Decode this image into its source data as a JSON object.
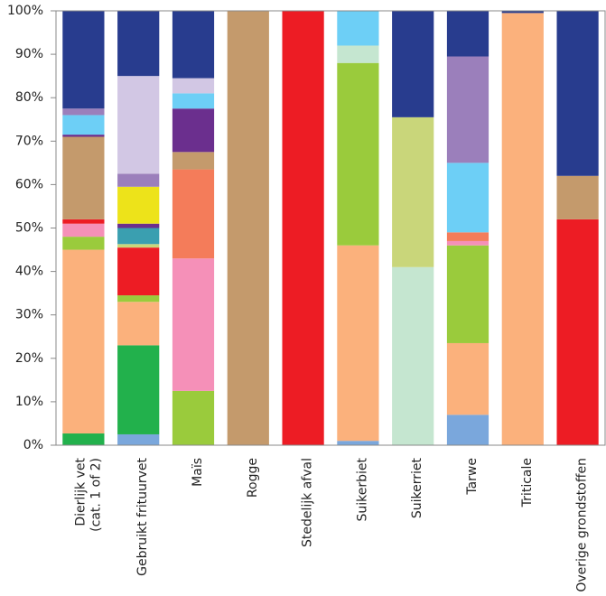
{
  "chart_data": {
    "type": "stacked-bar",
    "categories": [
      "Dierlijk vet\n(cat. 1 of 2)",
      "Gebruikt frituurvet",
      "Maïs",
      "Rogge",
      "Stedelijk afval",
      "Suikerbiet",
      "Suikerriet",
      "Tarwe",
      "Triticale",
      "Overige grondstoffen"
    ],
    "ylim": [
      0,
      100
    ],
    "yticks": [
      {
        "value": 0,
        "label": "0%"
      },
      {
        "value": 10,
        "label": "10%"
      },
      {
        "value": 20,
        "label": "20%"
      },
      {
        "value": 30,
        "label": "30%"
      },
      {
        "value": 40,
        "label": "40%"
      },
      {
        "value": 50,
        "label": "50%"
      },
      {
        "value": 60,
        "label": "60%"
      },
      {
        "value": 70,
        "label": "70%"
      },
      {
        "value": 80,
        "label": "80%"
      },
      {
        "value": 90,
        "label": "90%"
      },
      {
        "value": 100,
        "label": "100%"
      }
    ],
    "grid": false,
    "series": [
      {
        "color": "#7aa7dc",
        "values": [
          0,
          2.5,
          0,
          0,
          0,
          1,
          0,
          7,
          0,
          0
        ]
      },
      {
        "color": "#22b14c",
        "values": [
          2.7,
          20.5,
          0,
          0,
          0,
          0,
          0,
          0,
          0,
          0
        ]
      },
      {
        "color": "#fbb17c",
        "values": [
          42.3,
          10,
          0,
          0,
          0,
          45,
          0,
          16.5,
          99.5,
          0
        ]
      },
      {
        "color": "#9acb3c",
        "values": [
          3,
          1.5,
          12.5,
          0,
          0,
          42,
          0,
          22.5,
          0,
          0
        ]
      },
      {
        "color": "#f590b8",
        "values": [
          3,
          0,
          30.5,
          0,
          0,
          0,
          0,
          1,
          0,
          0
        ]
      },
      {
        "color": "#ed1c24",
        "values": [
          1,
          11,
          0,
          0,
          100,
          0,
          0,
          0,
          0,
          52
        ]
      },
      {
        "color": "#c5e6d0",
        "values": [
          0,
          0,
          0,
          0,
          0,
          4,
          41,
          0,
          0,
          0
        ]
      },
      {
        "color": "#c9d67a",
        "values": [
          0,
          0.8,
          0,
          0,
          0,
          0,
          34.5,
          0,
          0,
          0
        ]
      },
      {
        "color": "#3a9fb0",
        "values": [
          0,
          3.7,
          0,
          0,
          0,
          0,
          0,
          0,
          0,
          0
        ]
      },
      {
        "color": "#f47c5a",
        "values": [
          0,
          0,
          20.5,
          0,
          0,
          0,
          0,
          2,
          0,
          0
        ]
      },
      {
        "color": "#c49a6c",
        "values": [
          19,
          0,
          4,
          100,
          0,
          0,
          0,
          0,
          0,
          10
        ]
      },
      {
        "color": "#6b2f8e",
        "values": [
          0.5,
          1,
          10,
          0,
          0,
          0,
          0,
          0,
          0,
          0
        ]
      },
      {
        "color": "#ede31a",
        "values": [
          0,
          8.5,
          0,
          0,
          0,
          0,
          0,
          0,
          0,
          0
        ]
      },
      {
        "color": "#6dcff6",
        "values": [
          4.5,
          0,
          3.5,
          0,
          0,
          8,
          0,
          16,
          0,
          0
        ]
      },
      {
        "color": "#9b7fbb",
        "values": [
          1.5,
          3,
          0,
          0,
          0,
          0,
          0,
          24.5,
          0,
          0
        ]
      },
      {
        "color": "#d2c7e4",
        "values": [
          0,
          22.5,
          3.5,
          0,
          0,
          0,
          0,
          0,
          0,
          0
        ]
      },
      {
        "color": "#283c8e",
        "values": [
          22.5,
          15,
          15.5,
          0,
          0,
          0,
          24.5,
          10.5,
          0.5,
          38
        ]
      }
    ]
  }
}
